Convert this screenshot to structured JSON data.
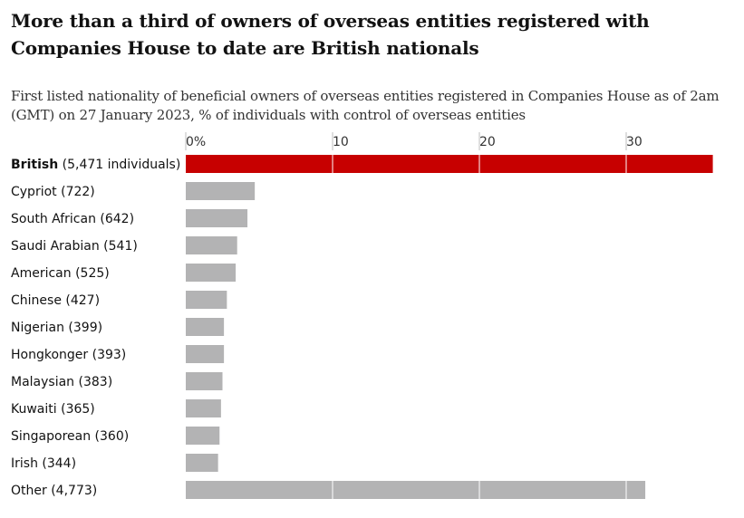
{
  "title": "More than a third of owners of overseas entities registered with Companies House to date are British nationals",
  "subtitle": "First listed nationality of beneficial owners of overseas entities registered in Companies House as of 2am (GMT) on 27 January 2023, % of individuals with control of overseas entities",
  "colors": {
    "highlight": "#c70000",
    "bar": "#b3b3b4",
    "text": "#121212",
    "gridline": "#ffffff"
  },
  "chart_data": {
    "type": "bar",
    "orientation": "horizontal",
    "title": "More than a third of owners of overseas entities registered with Companies House to date are British nationals",
    "subtitle": "First listed nationality of beneficial owners of overseas entities registered in Companies House as of 2am (GMT) on 27 January 2023, % of individuals with control of overseas entities",
    "xlim": [
      0,
      36
    ],
    "ticks": [
      {
        "value": 0,
        "label": "0%"
      },
      {
        "value": 10,
        "label": "10"
      },
      {
        "value": 20,
        "label": "20"
      },
      {
        "value": 30,
        "label": "30"
      }
    ],
    "grid": true,
    "bars": [
      {
        "name": "British",
        "count": "(5,471 individuals)",
        "value": 35.9,
        "highlight": true
      },
      {
        "name": "Cypriot",
        "count": "(722)",
        "value": 4.7,
        "highlight": false
      },
      {
        "name": "South African",
        "count": "(642)",
        "value": 4.2,
        "highlight": false
      },
      {
        "name": "Saudi Arabian",
        "count": "(541)",
        "value": 3.5,
        "highlight": false
      },
      {
        "name": "American",
        "count": "(525)",
        "value": 3.4,
        "highlight": false
      },
      {
        "name": "Chinese",
        "count": "(427)",
        "value": 2.8,
        "highlight": false
      },
      {
        "name": "Nigerian",
        "count": "(399)",
        "value": 2.6,
        "highlight": false
      },
      {
        "name": "Hongkonger",
        "count": "(393)",
        "value": 2.6,
        "highlight": false
      },
      {
        "name": "Malaysian",
        "count": "(383)",
        "value": 2.5,
        "highlight": false
      },
      {
        "name": "Kuwaiti",
        "count": "(365)",
        "value": 2.4,
        "highlight": false
      },
      {
        "name": "Singaporean",
        "count": "(360)",
        "value": 2.3,
        "highlight": false
      },
      {
        "name": "Irish",
        "count": "(344)",
        "value": 2.2,
        "highlight": false
      },
      {
        "name": "Other",
        "count": "(4,773)",
        "value": 31.3,
        "highlight": false
      }
    ]
  }
}
